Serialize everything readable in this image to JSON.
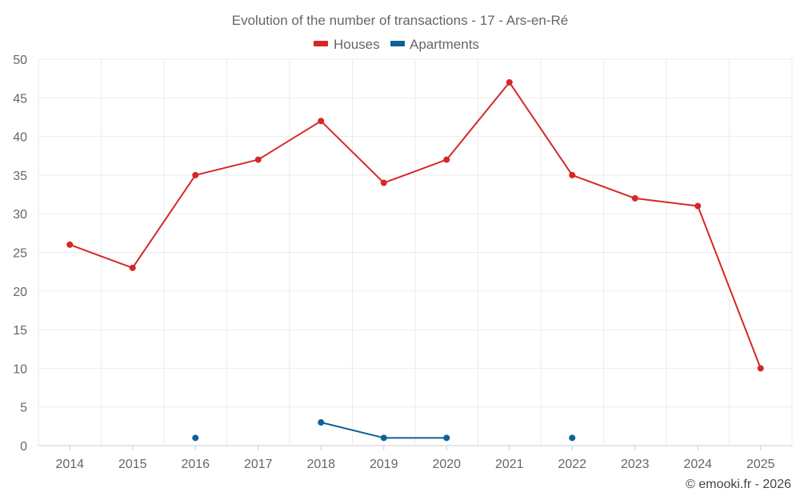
{
  "chart_data": {
    "type": "line",
    "title": "Evolution of the number of transactions - 17 - Ars-en-Ré",
    "categories": [
      "2014",
      "2015",
      "2016",
      "2017",
      "2018",
      "2019",
      "2020",
      "2021",
      "2022",
      "2023",
      "2024",
      "2025"
    ],
    "series": [
      {
        "name": "Houses",
        "color": "#d62728",
        "values": [
          26,
          23,
          35,
          37,
          42,
          34,
          37,
          47,
          35,
          32,
          31,
          10
        ]
      },
      {
        "name": "Apartments",
        "color": "#0e6197",
        "values": [
          null,
          null,
          1,
          null,
          3,
          1,
          1,
          null,
          1,
          null,
          null,
          null
        ]
      }
    ],
    "ylim": [
      0,
      50
    ],
    "yticks": [
      "0",
      "5",
      "10",
      "15",
      "20",
      "25",
      "30",
      "35",
      "40",
      "45",
      "50"
    ],
    "grid": true,
    "legend_position": "top-center",
    "xlabel": "",
    "ylabel": ""
  },
  "credit": "© emooki.fr - 2026"
}
